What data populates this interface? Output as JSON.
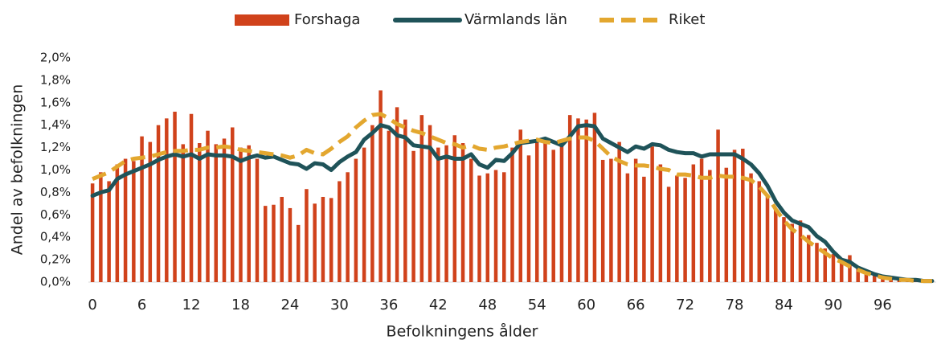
{
  "chart_data": {
    "type": "bar",
    "xlabel": "Befolkningens ålder",
    "ylabel": "Andel av befolkningen",
    "categories": [
      "0",
      null,
      null,
      null,
      null,
      null,
      "6",
      null,
      null,
      null,
      null,
      null,
      "12",
      null,
      null,
      null,
      null,
      null,
      "18",
      null,
      null,
      null,
      null,
      null,
      "24",
      null,
      null,
      null,
      null,
      null,
      "30",
      null,
      null,
      null,
      null,
      null,
      "36",
      null,
      null,
      null,
      null,
      null,
      "42",
      null,
      null,
      null,
      null,
      null,
      "48",
      null,
      null,
      null,
      null,
      null,
      "54",
      null,
      null,
      null,
      null,
      null,
      "60",
      null,
      null,
      null,
      null,
      null,
      "66",
      null,
      null,
      null,
      null,
      null,
      "72",
      null,
      null,
      null,
      null,
      null,
      "78",
      null,
      null,
      null,
      null,
      null,
      "84",
      null,
      null,
      null,
      null,
      null,
      "90",
      null,
      null,
      null,
      null,
      null,
      "96",
      null,
      null,
      null,
      null,
      null,
      null
    ],
    "ylim": [
      0,
      2.0
    ],
    "yticks": [
      {
        "value": 0,
        "label": "0,0%"
      },
      {
        "value": 0.2,
        "label": "0,2%"
      },
      {
        "value": 0.4,
        "label": "0,4%"
      },
      {
        "value": 0.6,
        "label": "0,6%"
      },
      {
        "value": 0.8,
        "label": "0,8%"
      },
      {
        "value": 1.0,
        "label": "1,0%"
      },
      {
        "value": 1.2,
        "label": "1,2%"
      },
      {
        "value": 1.4,
        "label": "1,4%"
      },
      {
        "value": 1.6,
        "label": "1,6%"
      },
      {
        "value": 1.8,
        "label": "1,8%"
      },
      {
        "value": 2.0,
        "label": "2,0%"
      }
    ],
    "grid": false,
    "legend": "top",
    "series": [
      {
        "name": "Forshaga",
        "type": "bar",
        "color": "#d0421b",
        "values": [
          0.88,
          0.98,
          0.9,
          1.05,
          1.1,
          1.08,
          1.3,
          1.25,
          1.4,
          1.46,
          1.52,
          1.23,
          1.5,
          1.24,
          1.35,
          1.23,
          1.28,
          1.38,
          1.2,
          1.22,
          1.1,
          0.68,
          0.69,
          0.76,
          0.66,
          0.51,
          0.83,
          0.7,
          0.76,
          0.75,
          0.9,
          0.98,
          1.1,
          1.2,
          1.4,
          1.71,
          1.35,
          1.56,
          1.45,
          1.17,
          1.49,
          1.4,
          1.2,
          1.22,
          1.31,
          1.24,
          1.1,
          0.95,
          0.97,
          1.0,
          0.98,
          1.2,
          1.36,
          1.13,
          1.26,
          1.28,
          1.18,
          1.24,
          1.49,
          1.46,
          1.45,
          1.51,
          1.09,
          1.1,
          1.25,
          0.97,
          1.1,
          0.94,
          1.21,
          1.05,
          0.85,
          0.95,
          0.93,
          1.05,
          1.1,
          1.0,
          1.36,
          1.02,
          1.18,
          1.19,
          0.97,
          0.9,
          0.78,
          0.65,
          0.58,
          0.52,
          0.55,
          0.42,
          0.35,
          0.3,
          0.25,
          0.2,
          0.24,
          0.12,
          0.1,
          0.07,
          0.05,
          0.03,
          0.04,
          0.02,
          0.02,
          0.01,
          0.01
        ]
      },
      {
        "name": "Värmlands län",
        "type": "line",
        "color": "#1f5359",
        "dashed": false,
        "values": [
          0.77,
          0.8,
          0.82,
          0.92,
          0.96,
          0.99,
          1.02,
          1.05,
          1.09,
          1.12,
          1.14,
          1.12,
          1.14,
          1.1,
          1.14,
          1.13,
          1.13,
          1.12,
          1.08,
          1.11,
          1.13,
          1.11,
          1.12,
          1.09,
          1.06,
          1.05,
          1.01,
          1.06,
          1.05,
          1.0,
          1.07,
          1.12,
          1.16,
          1.27,
          1.33,
          1.4,
          1.38,
          1.31,
          1.29,
          1.22,
          1.21,
          1.2,
          1.1,
          1.12,
          1.1,
          1.1,
          1.14,
          1.05,
          1.02,
          1.09,
          1.08,
          1.15,
          1.24,
          1.25,
          1.26,
          1.28,
          1.25,
          1.22,
          1.3,
          1.39,
          1.4,
          1.39,
          1.28,
          1.24,
          1.2,
          1.16,
          1.21,
          1.19,
          1.23,
          1.22,
          1.18,
          1.16,
          1.15,
          1.15,
          1.12,
          1.14,
          1.14,
          1.14,
          1.14,
          1.1,
          1.05,
          0.97,
          0.86,
          0.72,
          0.62,
          0.55,
          0.52,
          0.49,
          0.41,
          0.36,
          0.27,
          0.2,
          0.18,
          0.13,
          0.1,
          0.07,
          0.05,
          0.04,
          0.03,
          0.02,
          0.02,
          0.01,
          0.01
        ]
      },
      {
        "name": "Riket",
        "type": "line",
        "color": "#e3a72f",
        "dashed": true,
        "values": [
          0.92,
          0.95,
          0.98,
          1.03,
          1.08,
          1.1,
          1.11,
          1.12,
          1.14,
          1.16,
          1.17,
          1.17,
          1.18,
          1.18,
          1.2,
          1.2,
          1.21,
          1.2,
          1.18,
          1.17,
          1.16,
          1.15,
          1.14,
          1.13,
          1.11,
          1.13,
          1.18,
          1.15,
          1.14,
          1.19,
          1.25,
          1.3,
          1.38,
          1.44,
          1.49,
          1.5,
          1.46,
          1.41,
          1.38,
          1.35,
          1.33,
          1.3,
          1.27,
          1.24,
          1.23,
          1.2,
          1.22,
          1.19,
          1.18,
          1.2,
          1.21,
          1.23,
          1.25,
          1.26,
          1.27,
          1.25,
          1.24,
          1.26,
          1.28,
          1.29,
          1.29,
          1.26,
          1.19,
          1.12,
          1.08,
          1.05,
          1.04,
          1.04,
          1.03,
          1.01,
          1.0,
          0.96,
          0.96,
          0.95,
          0.93,
          0.93,
          0.95,
          0.94,
          0.94,
          0.93,
          0.91,
          0.85,
          0.77,
          0.65,
          0.55,
          0.47,
          0.42,
          0.36,
          0.31,
          0.26,
          0.21,
          0.18,
          0.14,
          0.11,
          0.08,
          0.06,
          0.04,
          0.03,
          0.02,
          0.02,
          0.01,
          0.01,
          0.01
        ]
      }
    ]
  }
}
